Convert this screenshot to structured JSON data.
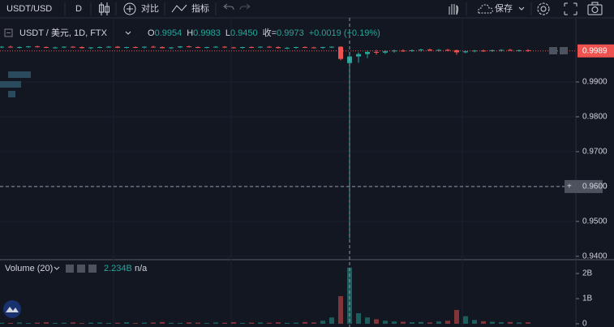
{
  "toolbar": {
    "symbol": "USDT/USD",
    "interval": "D",
    "compare": "对比",
    "indicators": "指标",
    "save": "保存"
  },
  "legend": {
    "title": "USDT / 美元, 1D, FTX",
    "open_label": "O",
    "open": "0.9954",
    "high_label": "H",
    "high": "0.9983",
    "low_label": "L",
    "low": "0.9450",
    "close_label": "收=",
    "close": "0.9973",
    "change": "+0.0019 (+0.19%)"
  },
  "chart_data": {
    "type": "candlestick",
    "up_color": "#26a69a",
    "down_color": "#ef5350",
    "ylim": [
      0.9395,
      1.0014
    ],
    "yticks": [
      {
        "value": 0.99,
        "label": "0.9900"
      },
      {
        "value": 0.98,
        "label": "0.9800"
      },
      {
        "value": 0.97,
        "label": "0.9700"
      },
      {
        "value": 0.96,
        "label": "0.9600"
      },
      {
        "value": 0.95,
        "label": "0.9500"
      },
      {
        "value": 0.94,
        "label": "0.9400"
      }
    ],
    "grid": true,
    "last_price": {
      "value": 0.9989,
      "label": "0.9989"
    },
    "crosshair": {
      "value": 0.96,
      "label": "0.9600"
    },
    "candles": [
      [
        1.0,
        1.0003,
        0.9997,
        1.0001
      ],
      [
        1.0001,
        1.0004,
        0.9998,
        0.9999
      ],
      [
        0.9999,
        1.0002,
        0.9996,
        1.0
      ],
      [
        1.0,
        1.0003,
        0.9998,
        1.0002
      ],
      [
        1.0002,
        1.0004,
        0.9999,
        1.0
      ],
      [
        1.0,
        1.0002,
        0.9997,
        0.9998
      ],
      [
        0.9998,
        1.0001,
        0.9995,
        0.9999
      ],
      [
        0.9999,
        1.0002,
        0.9997,
        1.0001
      ],
      [
        1.0001,
        1.0003,
        0.9998,
        1.0
      ],
      [
        1.0,
        1.0002,
        0.9996,
        0.9997
      ],
      [
        0.9997,
        1.0,
        0.9994,
        0.9999
      ],
      [
        0.9999,
        1.0002,
        0.9997,
        1.0
      ],
      [
        1.0,
        1.0003,
        0.9998,
        1.0001
      ],
      [
        1.0001,
        1.0003,
        0.9997,
        0.9998
      ],
      [
        0.9998,
        1.0001,
        0.9996,
        1.0
      ],
      [
        1.0,
        1.0002,
        0.9997,
        0.9999
      ],
      [
        0.9999,
        1.0002,
        0.9996,
        1.0001
      ],
      [
        1.0001,
        1.0004,
        0.9998,
        1.0
      ],
      [
        1.0,
        1.0002,
        0.9996,
        0.9997
      ],
      [
        0.9997,
        1.0,
        0.9994,
        0.9999
      ],
      [
        0.9999,
        1.0003,
        0.9997,
        1.0002
      ],
      [
        1.0002,
        1.0004,
        0.9999,
        1.0
      ],
      [
        1.0,
        1.0002,
        0.9997,
        0.9998
      ],
      [
        0.9998,
        1.0001,
        0.9996,
        1.0
      ],
      [
        1.0,
        1.0003,
        0.9998,
        1.0001
      ],
      [
        1.0001,
        1.0003,
        0.9997,
        0.9999
      ],
      [
        0.9999,
        1.0001,
        0.9996,
        0.9998
      ],
      [
        0.9998,
        1.0001,
        0.9995,
        1.0
      ],
      [
        1.0,
        1.0002,
        0.9997,
        0.9999
      ],
      [
        0.9999,
        1.0002,
        0.9997,
        1.0001
      ],
      [
        1.0001,
        1.0003,
        0.9998,
        1.0
      ],
      [
        1.0,
        1.0002,
        0.9996,
        0.9997
      ],
      [
        0.9997,
        1.0,
        0.9994,
        0.9998
      ],
      [
        0.9998,
        1.0001,
        0.9995,
        1.0
      ],
      [
        1.0,
        1.0002,
        0.9997,
        0.9999
      ],
      [
        0.9999,
        1.0001,
        0.9996,
        0.9998
      ],
      [
        0.9998,
        1.0001,
        0.9995,
        1.0
      ],
      [
        1.0,
        1.0002,
        0.9997,
        1.0001
      ],
      [
        1.0001,
        1.0002,
        0.9962,
        0.9966
      ],
      [
        0.9954,
        0.9983,
        0.945,
        0.9973
      ],
      [
        0.9973,
        0.9985,
        0.9955,
        0.998
      ],
      [
        0.998,
        0.999,
        0.9968,
        0.9986
      ],
      [
        0.9986,
        0.9992,
        0.9978,
        0.9984
      ],
      [
        0.9984,
        0.9991,
        0.998,
        0.9988
      ],
      [
        0.9988,
        0.9993,
        0.9984,
        0.999
      ],
      [
        0.999,
        0.9994,
        0.9986,
        0.9989
      ],
      [
        0.9989,
        0.9993,
        0.9986,
        0.9991
      ],
      [
        0.9991,
        0.9995,
        0.9987,
        0.9993
      ],
      [
        0.9993,
        0.9996,
        0.9989,
        0.999
      ],
      [
        0.999,
        0.9994,
        0.9987,
        0.9992
      ],
      [
        0.9992,
        0.9995,
        0.9988,
        0.9991
      ],
      [
        0.9991,
        0.9993,
        0.9978,
        0.9985
      ],
      [
        0.9985,
        0.999,
        0.9982,
        0.9988
      ],
      [
        0.9988,
        0.9992,
        0.9985,
        0.999
      ],
      [
        0.999,
        0.9993,
        0.9986,
        0.9989
      ],
      [
        0.9989,
        0.9993,
        0.9986,
        0.9991
      ],
      [
        0.9991,
        0.9994,
        0.9987,
        0.9992
      ],
      [
        0.9992,
        0.9995,
        0.9989,
        0.999
      ],
      [
        0.999,
        0.9993,
        0.9987,
        0.9991
      ],
      [
        0.9991,
        0.9994,
        0.9986,
        0.9989
      ]
    ],
    "volume": {
      "title": "Volume (20)",
      "legend_value": "2.234B",
      "legend_na": "n/a",
      "ylim": [
        0,
        2390000000
      ],
      "yticks": [
        {
          "value": 0,
          "label": "0"
        },
        {
          "value": 1000000000,
          "label": "1B"
        },
        {
          "value": 2000000000,
          "label": "2B"
        }
      ],
      "values": [
        40000000,
        35000000,
        50000000,
        30000000,
        45000000,
        60000000,
        35000000,
        40000000,
        55000000,
        30000000,
        45000000,
        50000000,
        35000000,
        40000000,
        60000000,
        30000000,
        45000000,
        50000000,
        70000000,
        40000000,
        35000000,
        55000000,
        45000000,
        30000000,
        50000000,
        40000000,
        65000000,
        35000000,
        45000000,
        50000000,
        40000000,
        60000000,
        35000000,
        45000000,
        70000000,
        55000000,
        120000000,
        250000000,
        1100000000,
        2234000000,
        420000000,
        250000000,
        180000000,
        120000000,
        90000000,
        80000000,
        60000000,
        70000000,
        50000000,
        90000000,
        120000000,
        550000000,
        300000000,
        150000000,
        100000000,
        80000000,
        60000000,
        70000000,
        50000000,
        60000000
      ]
    }
  }
}
